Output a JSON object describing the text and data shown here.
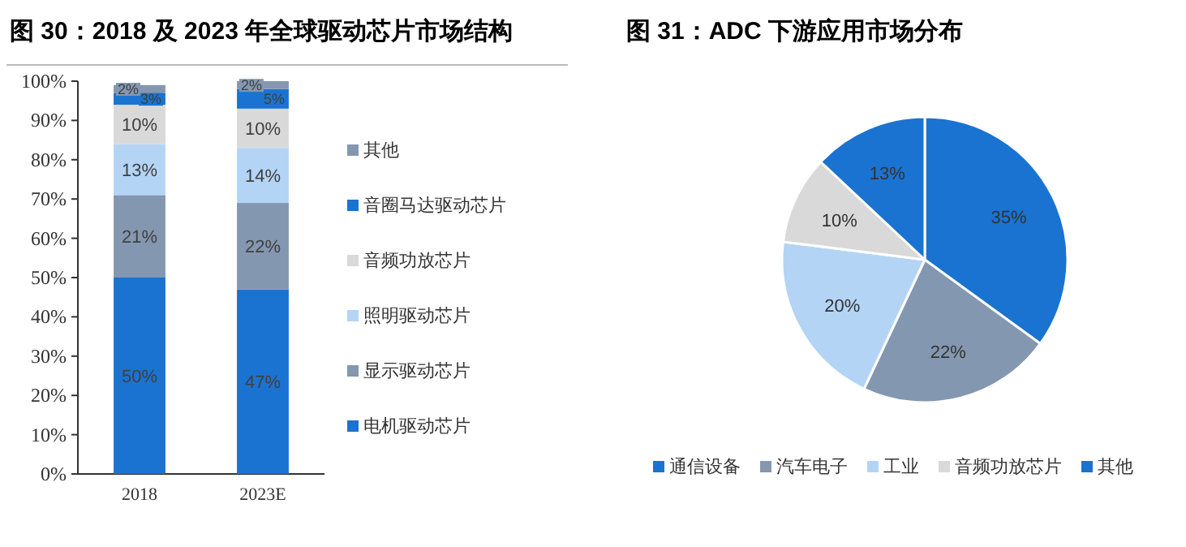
{
  "chart_data": [
    {
      "type": "bar",
      "stacked": true,
      "title": "图 30：2018 及 2023 年全球驱动芯片市场结构",
      "categories": [
        "2018",
        "2023E"
      ],
      "ylim": [
        0,
        100
      ],
      "yticks": [
        {
          "value": 0,
          "label": "0%"
        },
        {
          "value": 10,
          "label": "10%"
        },
        {
          "value": 20,
          "label": "20%"
        },
        {
          "value": 30,
          "label": "30%"
        },
        {
          "value": 40,
          "label": "40%"
        },
        {
          "value": 50,
          "label": "50%"
        },
        {
          "value": 60,
          "label": "60%"
        },
        {
          "value": 70,
          "label": "70%"
        },
        {
          "value": 80,
          "label": "80%"
        },
        {
          "value": 90,
          "label": "90%"
        },
        {
          "value": 100,
          "label": "100%"
        }
      ],
      "legend": "right",
      "series": [
        {
          "name": "电机驱动芯片",
          "color": "#1a73d0",
          "values": [
            50,
            47
          ],
          "value_labels": [
            "50%",
            "47%"
          ]
        },
        {
          "name": "显示驱动芯片",
          "color": "#8497b0",
          "values": [
            21,
            22
          ],
          "value_labels": [
            "21%",
            "22%"
          ]
        },
        {
          "name": "照明驱动芯片",
          "color": "#b4d4f5",
          "values": [
            13,
            14
          ],
          "value_labels": [
            "13%",
            "14%"
          ]
        },
        {
          "name": "音频功放芯片",
          "color": "#d9d9d9",
          "values": [
            10,
            10
          ],
          "value_labels": [
            "10%",
            "10%"
          ]
        },
        {
          "name": "音圈马达驱动芯片",
          "color": "#1a73d0",
          "values": [
            3,
            5
          ],
          "value_labels": [
            "3%",
            "5%"
          ]
        },
        {
          "name": "其他",
          "color": "#8497b0",
          "values": [
            2,
            2
          ],
          "value_labels": [
            "2%",
            "2%"
          ]
        }
      ]
    },
    {
      "type": "pie",
      "title": "图 31：ADC 下游应用市场分布",
      "categories": [
        "通信设备",
        "汽车电子",
        "工业",
        "音频功放芯片",
        "其他"
      ],
      "values": [
        35,
        22,
        20,
        10,
        13
      ],
      "colors": [
        "#1a73d0",
        "#8497b0",
        "#b4d4f5",
        "#d9d9d9",
        "#1a73d0"
      ],
      "value_labels": [
        "35%",
        "22%",
        "20%",
        "10%",
        "13%"
      ],
      "legend": "bottom"
    }
  ]
}
